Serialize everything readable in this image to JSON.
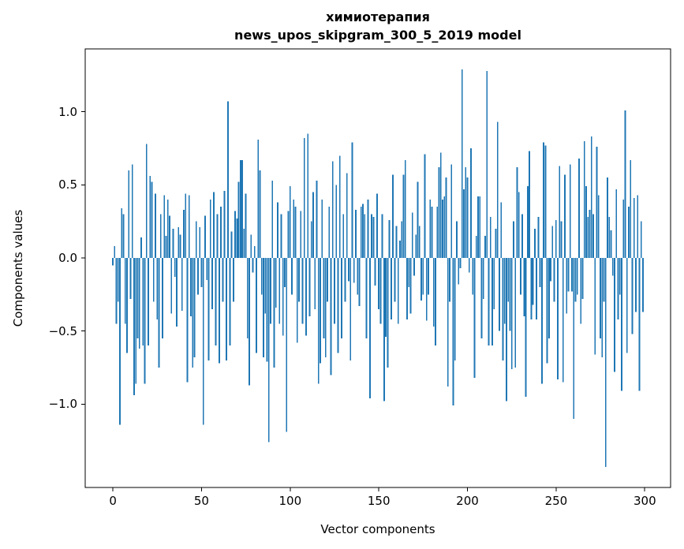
{
  "figure": {
    "title_line1": "химиотерапия",
    "title_line2": "news_upos_skipgram_300_5_2019 model",
    "xlabel": "Vector components",
    "ylabel": "Components values",
    "background_color": "#ffffff",
    "bar_color": "#1f77b4",
    "axis_color": "#000000"
  },
  "chart_data": {
    "type": "bar",
    "title": "химиотерапия\nnews_upos_skipgram_300_5_2019 model",
    "xlabel": "Vector components",
    "ylabel": "Components values",
    "n_components": 300,
    "x_description": "component index 0..299",
    "x_ticks": [
      0,
      50,
      100,
      150,
      200,
      250,
      300
    ],
    "x_tick_labels": [
      "0",
      "50",
      "100",
      "150",
      "200",
      "250",
      "300"
    ],
    "y_ticks": [
      1.0,
      0.5,
      0.0,
      -0.5,
      -1.0
    ],
    "y_tick_labels": [
      "1.0",
      "0.5",
      "0.0",
      "−0.5",
      "−1.0"
    ],
    "xlim": [
      -15.6,
      314.6
    ],
    "ylim": [
      -1.57,
      1.43
    ],
    "grid": false,
    "legend": null,
    "bar_color": "#1f77b4",
    "values": [
      -0.05,
      0.08,
      -0.45,
      -0.3,
      -1.14,
      0.34,
      0.3,
      -0.45,
      -0.65,
      0.6,
      -0.28,
      0.64,
      -0.94,
      -0.86,
      -0.55,
      -0.62,
      0.14,
      -0.6,
      -0.86,
      0.78,
      -0.6,
      0.56,
      0.52,
      -0.3,
      0.44,
      -0.42,
      -0.75,
      0.3,
      -0.55,
      0.43,
      0.15,
      0.4,
      0.29,
      -0.38,
      0.2,
      -0.13,
      -0.47,
      0.21,
      0.16,
      -0.36,
      0.33,
      0.44,
      -0.85,
      0.43,
      -0.4,
      -0.75,
      -0.68,
      0.25,
      -0.25,
      0.21,
      -0.2,
      -1.14,
      0.29,
      -0.15,
      -0.7,
      0.4,
      -0.35,
      0.45,
      -0.6,
      0.3,
      -0.72,
      0.35,
      -0.3,
      0.46,
      -0.7,
      1.07,
      -0.6,
      0.18,
      -0.3,
      0.32,
      0.27,
      0.52,
      0.67,
      0.67,
      0.2,
      0.44,
      -0.55,
      -0.87,
      0.16,
      -0.1,
      0.08,
      -0.65,
      0.81,
      0.6,
      -0.25,
      -0.68,
      -0.38,
      -0.71,
      -1.26,
      -0.45,
      0.53,
      -0.75,
      -0.34,
      0.38,
      -0.45,
      0.3,
      -0.53,
      -0.2,
      -1.19,
      0.32,
      0.49,
      -0.25,
      0.4,
      0.35,
      -0.58,
      -0.3,
      0.32,
      -0.45,
      0.82,
      -0.53,
      0.85,
      -0.4,
      0.25,
      0.45,
      -0.35,
      0.53,
      -0.86,
      -0.72,
      0.4,
      -0.55,
      -0.68,
      -0.3,
      0.35,
      -0.8,
      0.66,
      -0.45,
      0.5,
      -0.65,
      0.7,
      -0.55,
      0.3,
      -0.3,
      0.58,
      -0.16,
      -0.7,
      0.79,
      -0.17,
      0.33,
      -0.25,
      -0.33,
      0.35,
      0.37,
      0.3,
      -0.55,
      0.4,
      -0.96,
      0.3,
      0.28,
      -0.19,
      0.44,
      -0.35,
      -0.45,
      0.3,
      -0.98,
      -0.54,
      -0.75,
      0.26,
      -0.42,
      0.57,
      -0.3,
      0.22,
      -0.45,
      0.12,
      0.25,
      0.57,
      0.67,
      -0.42,
      -0.2,
      -0.38,
      0.31,
      -0.12,
      0.16,
      0.52,
      0.22,
      -0.29,
      -0.25,
      0.71,
      -0.43,
      -0.25,
      0.4,
      0.35,
      -0.47,
      -0.6,
      0.35,
      0.62,
      0.72,
      0.4,
      0.42,
      0.55,
      -0.88,
      -0.3,
      0.64,
      -1.01,
      -0.7,
      0.25,
      -0.18,
      -0.07,
      1.29,
      0.47,
      0.62,
      0.55,
      -0.1,
      0.75,
      -0.25,
      -0.82,
      0.15,
      0.42,
      0.42,
      -0.55,
      -0.28,
      0.15,
      1.28,
      -0.6,
      0.28,
      -0.6,
      -0.35,
      0.2,
      0.93,
      -0.5,
      0.38,
      -0.7,
      -0.45,
      -0.98,
      -0.3,
      -0.5,
      -0.76,
      0.25,
      -0.75,
      0.62,
      0.45,
      -0.25,
      0.3,
      -0.4,
      -0.95,
      0.49,
      0.73,
      -0.42,
      -0.32,
      0.2,
      -0.42,
      0.28,
      -0.2,
      -0.86,
      0.79,
      0.77,
      -0.72,
      -0.55,
      -0.16,
      0.22,
      -0.3,
      0.26,
      -0.83,
      0.63,
      0.25,
      -0.85,
      0.57,
      -0.38,
      -0.23,
      0.64,
      -0.23,
      -1.1,
      -0.3,
      -0.25,
      0.68,
      -0.45,
      -0.28,
      0.8,
      0.49,
      0.28,
      0.33,
      0.83,
      0.3,
      -0.66,
      0.76,
      0.43,
      -0.55,
      -0.68,
      -0.3,
      -1.43,
      0.55,
      0.28,
      0.19,
      -0.12,
      -0.78,
      0.47,
      -0.42,
      -0.25,
      -0.91,
      0.4,
      1.01,
      -0.65,
      0.35,
      0.67,
      -0.52,
      0.41,
      -0.37,
      0.43,
      -0.91,
      0.25,
      -0.37
    ]
  }
}
